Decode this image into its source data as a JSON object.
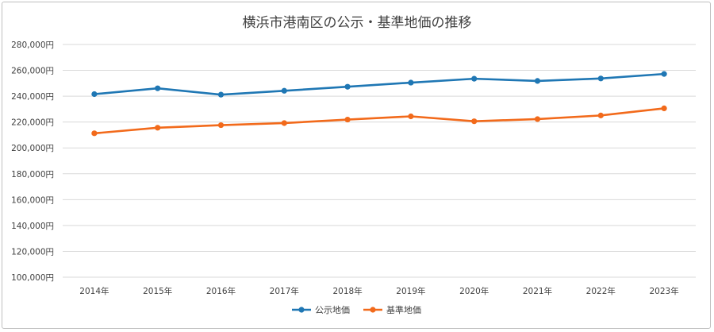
{
  "chart_data": {
    "type": "line",
    "title": "横浜市港南区の公示・基準地価の推移",
    "xlabel": "",
    "ylabel": "",
    "categories": [
      "2014年",
      "2015年",
      "2016年",
      "2017年",
      "2018年",
      "2019年",
      "2020年",
      "2021年",
      "2022年",
      "2023年"
    ],
    "ylim": [
      100000,
      280000
    ],
    "yticks": [
      "100,000円",
      "120,000円",
      "140,000円",
      "160,000円",
      "180,000円",
      "200,000円",
      "220,000円",
      "240,000円",
      "260,000円",
      "280,000円"
    ],
    "ytick_values": [
      100000,
      120000,
      140000,
      160000,
      180000,
      200000,
      220000,
      240000,
      260000,
      280000
    ],
    "grid": true,
    "legend_position": "bottom",
    "series": [
      {
        "name": "公示地価",
        "color": "#1f77b4",
        "values": [
          241600,
          246100,
          241200,
          244200,
          247300,
          250500,
          253500,
          251800,
          253700,
          257200
        ]
      },
      {
        "name": "基準地価",
        "color": "#f26a1b",
        "values": [
          211300,
          215600,
          217600,
          219200,
          221900,
          224400,
          220600,
          222300,
          225100,
          230600
        ]
      }
    ]
  }
}
